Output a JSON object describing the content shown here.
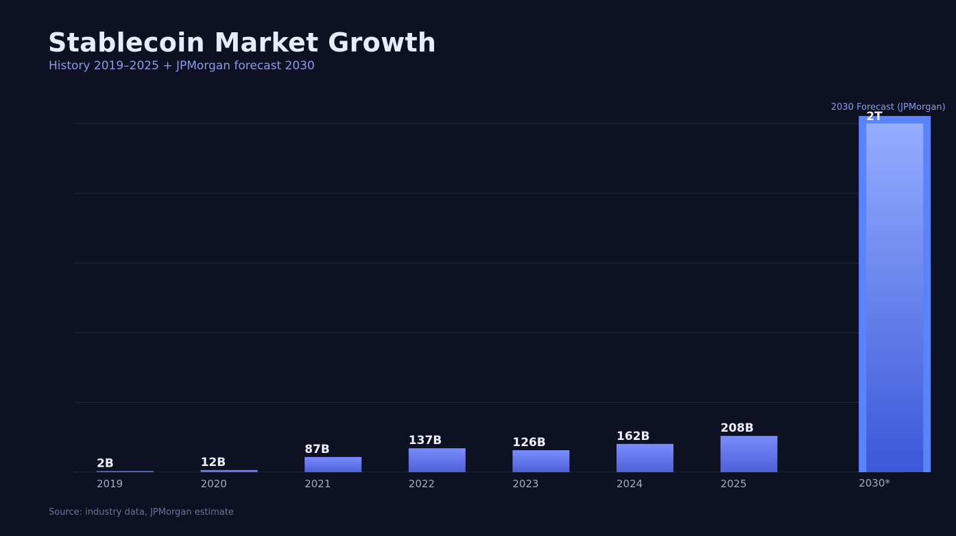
{
  "title": "Stablecoin Market Growth",
  "subtitle": "History 2019–2025 + JPMorgan forecast 2030",
  "source": "Source: industry data, JPMorgan estimate",
  "chart_data": {
    "type": "bar",
    "categories": [
      "2019",
      "2020",
      "2021",
      "2022",
      "2023",
      "2024",
      "2025",
      "2030*"
    ],
    "values": [
      2,
      12,
      87,
      137,
      126,
      162,
      208,
      2000
    ],
    "value_labels": [
      "2B",
      "12B",
      "87B",
      "137B",
      "126B",
      "162B",
      "208B",
      "2T"
    ],
    "unit": "billion USD",
    "forecast_index": 7,
    "forecast_label": "2030 Forecast (JPMorgan)",
    "ylim": [
      0,
      2000
    ],
    "grid": true,
    "colors": {
      "bar_top": "#7b8cff",
      "bar_bottom": "#4f5fd6",
      "forecast_outer": "#5b82ff",
      "forecast_top": "#95adff",
      "forecast_bottom": "#3a58d8",
      "grid": "#23283f"
    }
  }
}
